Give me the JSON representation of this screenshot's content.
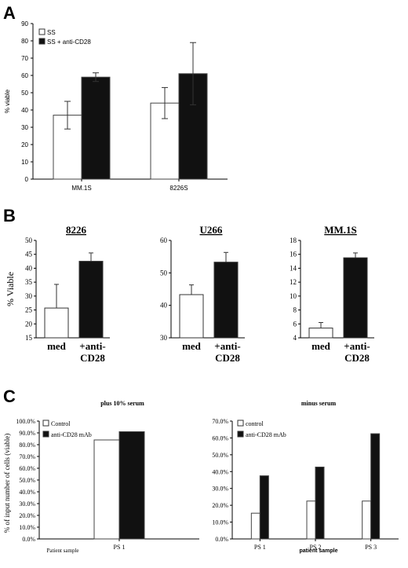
{
  "panel_labels": {
    "a": "A",
    "b": "B",
    "c": "C"
  },
  "chart_data": [
    {
      "type": "bar",
      "id": "A",
      "categories": [
        "MM.1S",
        "8226S"
      ],
      "series": [
        {
          "name": "SS",
          "values": [
            37,
            44
          ],
          "errors": [
            8,
            9
          ],
          "color": "#ffffff"
        },
        {
          "name": "SS + anti-CD28",
          "values": [
            59,
            61
          ],
          "errors": [
            2.5,
            18
          ],
          "color": "#111111"
        }
      ],
      "title": "",
      "xlabel": "",
      "ylabel": "% viable",
      "ylim": [
        0,
        90
      ],
      "yticks": [
        "0",
        "10",
        "20",
        "30",
        "40",
        "50",
        "60",
        "70",
        "80",
        "90"
      ],
      "legend": "top-left",
      "grid": false
    },
    {
      "type": "bar",
      "id": "B1",
      "title": "8226",
      "categories": [
        "med",
        "+anti-\nCD28"
      ],
      "category_lines": [
        [
          "med"
        ],
        [
          "+anti-",
          "CD28"
        ]
      ],
      "values": [
        25.7,
        42.5
      ],
      "errors": [
        8.5,
        3
      ],
      "colors": [
        "#ffffff",
        "#111111"
      ],
      "ylabel": "% Viable",
      "ylim": [
        15,
        50
      ],
      "yticks": [
        "15",
        "20",
        "25",
        "30",
        "35",
        "40",
        "45",
        "50"
      ],
      "grid": false
    },
    {
      "type": "bar",
      "id": "B2",
      "title": "U266",
      "categories": [
        "med",
        "+anti-\nCD28"
      ],
      "category_lines": [
        [
          "med"
        ],
        [
          "+anti-",
          "CD28"
        ]
      ],
      "values": [
        43.3,
        53.3
      ],
      "errors": [
        3,
        3
      ],
      "colors": [
        "#ffffff",
        "#111111"
      ],
      "ylabel": "",
      "ylim": [
        30,
        60
      ],
      "yticks": [
        "30",
        "40",
        "50",
        "60"
      ],
      "grid": false
    },
    {
      "type": "bar",
      "id": "B3",
      "title": "MM.1S",
      "categories": [
        "med",
        "+anti-\nCD28"
      ],
      "category_lines": [
        [
          "med"
        ],
        [
          "+anti-",
          "CD28"
        ]
      ],
      "values": [
        5.4,
        15.5
      ],
      "errors": [
        0.8,
        0.7
      ],
      "colors": [
        "#ffffff",
        "#111111"
      ],
      "ylabel": "",
      "ylim": [
        4,
        18
      ],
      "yticks": [
        "4",
        "6",
        "8",
        "10",
        "12",
        "14",
        "16",
        "18"
      ],
      "grid": false
    },
    {
      "type": "bar",
      "id": "C1",
      "title": "plus 10% serum",
      "categories": [
        "PS 1"
      ],
      "series": [
        {
          "name": "Control",
          "values": [
            84
          ],
          "color": "#ffffff"
        },
        {
          "name": "anti-CD28 mAb",
          "values": [
            91
          ],
          "color": "#111111"
        }
      ],
      "xlabel": "Patient sample",
      "ylabel": "% of input number of cells (viable)",
      "ylim": [
        0,
        100
      ],
      "yticks": [
        "0.0%",
        "10.0%",
        "20.0%",
        "30.0%",
        "40.0%",
        "50.0%",
        "60.0%",
        "70.0%",
        "80.0%",
        "90.0%",
        "100.0%"
      ],
      "legend": "top-left",
      "grid": false
    },
    {
      "type": "bar",
      "id": "C2",
      "title": "minus serum",
      "categories": [
        "PS 1",
        "PS 2",
        "PS 3"
      ],
      "series": [
        {
          "name": "control",
          "values": [
            15.3,
            22.5,
            22.5
          ],
          "color": "#ffffff"
        },
        {
          "name": "anti-CD28 mAb",
          "values": [
            37.5,
            42.7,
            62.5
          ],
          "color": "#111111"
        }
      ],
      "xlabel": "patient sample",
      "ylabel": "",
      "ylim": [
        0,
        70
      ],
      "yticks": [
        "0.0%",
        "10.0%",
        "20.0%",
        "30.0%",
        "40.0%",
        "50.0%",
        "60.0%",
        "70.0%"
      ],
      "legend": "top-left",
      "grid": false
    }
  ]
}
